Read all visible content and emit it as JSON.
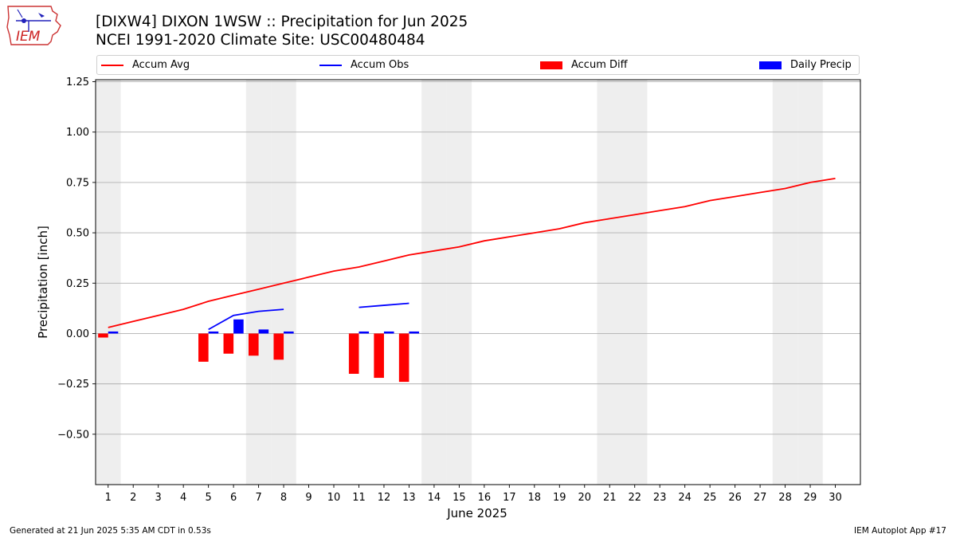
{
  "header": {
    "logo_text": "IEM",
    "title_line1": "[DIXW4] DIXON 1WSW :: Precipitation for Jun 2025",
    "title_line2": "NCEI 1991-2020 Climate Site: USC00480484"
  },
  "legend": {
    "items": [
      {
        "label": "Accum Avg",
        "kind": "line",
        "color": "#ff0000"
      },
      {
        "label": "Accum Obs",
        "kind": "line",
        "color": "#0000ff"
      },
      {
        "label": "Accum Diff",
        "kind": "patch",
        "color": "#ff0000"
      },
      {
        "label": "Daily Precip",
        "kind": "patch",
        "color": "#0000ff"
      }
    ]
  },
  "footer": {
    "left": "Generated at 21 Jun 2025 5:35 AM CDT in 0.53s",
    "right": "IEM Autoplot App #17"
  },
  "chart_data": {
    "type": "bar",
    "xlabel": "June 2025",
    "ylabel": "Precipitation [inch]",
    "xlim": [
      0.5,
      31
    ],
    "ylim": [
      -0.75,
      1.26
    ],
    "yticks": [
      -0.5,
      -0.25,
      0.0,
      0.25,
      0.5,
      0.75,
      1.0,
      1.25
    ],
    "ytick_labels": [
      "−0.50",
      "−0.25",
      "0.00",
      "0.25",
      "0.50",
      "0.75",
      "1.00",
      "1.25"
    ],
    "days": [
      1,
      2,
      3,
      4,
      5,
      6,
      7,
      8,
      9,
      10,
      11,
      12,
      13,
      14,
      15,
      16,
      17,
      18,
      19,
      20,
      21,
      22,
      23,
      24,
      25,
      26,
      27,
      28,
      29,
      30
    ],
    "day_labels": [
      "1",
      "2",
      "3",
      "4",
      "5",
      "6",
      "7",
      "8",
      "9",
      "10",
      "11",
      "12",
      "13",
      "14",
      "15",
      "16",
      "17",
      "18",
      "19",
      "20",
      "21",
      "22",
      "23",
      "24",
      "25",
      "26",
      "27",
      "28",
      "29",
      "30"
    ],
    "weekend_days": [
      1,
      7,
      8,
      14,
      15,
      21,
      22,
      28,
      29
    ],
    "grid": "horizontal",
    "legend_position": "top",
    "series": [
      {
        "name": "Accum Avg",
        "kind": "line",
        "color": "#ff0000",
        "x": [
          1,
          2,
          3,
          4,
          5,
          6,
          7,
          8,
          9,
          10,
          11,
          12,
          13,
          14,
          15,
          16,
          17,
          18,
          19,
          20,
          21,
          22,
          23,
          24,
          25,
          26,
          27,
          28,
          29,
          30
        ],
        "values": [
          0.03,
          0.06,
          0.09,
          0.12,
          0.16,
          0.19,
          0.22,
          0.25,
          0.28,
          0.31,
          0.33,
          0.36,
          0.39,
          0.41,
          0.43,
          0.46,
          0.48,
          0.5,
          0.52,
          0.55,
          0.57,
          0.59,
          0.61,
          0.63,
          0.66,
          0.68,
          0.7,
          0.72,
          0.75,
          0.77
        ]
      },
      {
        "name": "Accum Obs",
        "kind": "line",
        "color": "#0000ff",
        "segments": [
          {
            "x": [
              5,
              6,
              7,
              8
            ],
            "values": [
              0.02,
              0.09,
              0.11,
              0.12
            ]
          },
          {
            "x": [
              11,
              12,
              13
            ],
            "values": [
              0.13,
              0.14,
              0.15
            ]
          }
        ]
      },
      {
        "name": "Accum Diff",
        "kind": "bar",
        "color": "#ff0000",
        "offset": -0.2,
        "x": [
          1,
          5,
          6,
          7,
          8,
          11,
          12,
          13
        ],
        "values": [
          -0.02,
          -0.14,
          -0.1,
          -0.11,
          -0.13,
          -0.2,
          -0.22,
          -0.24
        ]
      },
      {
        "name": "Daily Precip",
        "kind": "bar",
        "color": "#0000ff",
        "offset": 0.2,
        "x": [
          1,
          5,
          6,
          7,
          8,
          11,
          12,
          13
        ],
        "values": [
          0.01,
          0.01,
          0.07,
          0.02,
          0.01,
          0.01,
          0.01,
          0.01
        ]
      }
    ]
  }
}
